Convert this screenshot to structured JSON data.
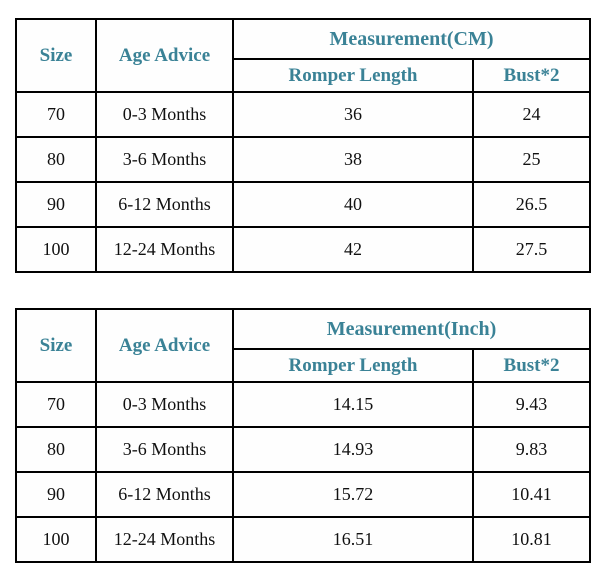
{
  "colors": {
    "header_text": "#3a8296",
    "body_text": "#111111",
    "border": "#000000",
    "cell_background": "#fefefe",
    "page_background": "#ffffff"
  },
  "chart_data": [
    {
      "type": "table",
      "title": "Measurement(CM)",
      "header": {
        "size": "Size",
        "age_advice": "Age Advice",
        "measurement_group": "Measurement(CM)",
        "sub_columns": [
          "Romper Length",
          "Bust*2"
        ]
      },
      "columns": [
        "Size",
        "Age Advice",
        "Romper Length",
        "Bust*2"
      ],
      "rows": [
        [
          "70",
          "0-3 Months",
          "36",
          "24"
        ],
        [
          "80",
          "3-6 Months",
          "38",
          "25"
        ],
        [
          "90",
          "6-12 Months",
          "40",
          "26.5"
        ],
        [
          "100",
          "12-24 Months",
          "42",
          "27.5"
        ]
      ]
    },
    {
      "type": "table",
      "title": "Measurement(Inch)",
      "header": {
        "size": "Size",
        "age_advice": "Age Advice",
        "measurement_group": "Measurement(Inch)",
        "sub_columns": [
          "Romper Length",
          "Bust*2"
        ]
      },
      "columns": [
        "Size",
        "Age Advice",
        "Romper Length",
        "Bust*2"
      ],
      "rows": [
        [
          "70",
          "0-3 Months",
          "14.15",
          "9.43"
        ],
        [
          "80",
          "3-6 Months",
          "14.93",
          "9.83"
        ],
        [
          "90",
          "6-12 Months",
          "15.72",
          "10.41"
        ],
        [
          "100",
          "12-24 Months",
          "16.51",
          "10.81"
        ]
      ]
    }
  ]
}
